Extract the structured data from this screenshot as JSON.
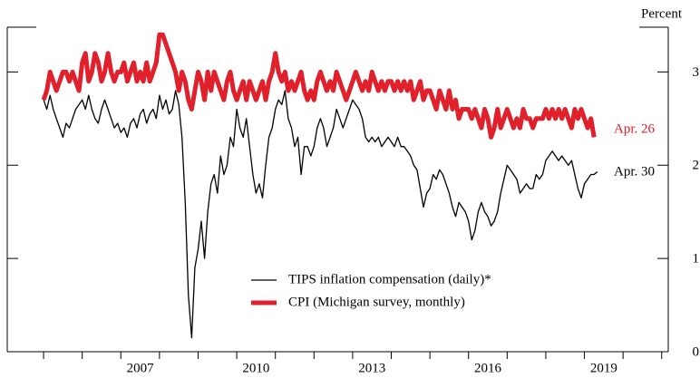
{
  "chart_data": {
    "type": "line",
    "y_label": "Percent",
    "xlim": [
      2004.06,
      2021.17
    ],
    "ylim": [
      0,
      3.48
    ],
    "yticks": [
      0,
      1,
      2,
      3
    ],
    "xticks": [
      2005,
      2006,
      2007,
      2008,
      2009,
      2010,
      2011,
      2012,
      2013,
      2014,
      2015,
      2016,
      2017,
      2018,
      2019,
      2020,
      2021
    ],
    "xtick_labels": [
      {
        "value": 2007.5,
        "label": "2007"
      },
      {
        "value": 2010.5,
        "label": "2010"
      },
      {
        "value": 2013.5,
        "label": "2013"
      },
      {
        "value": 2016.5,
        "label": "2016"
      },
      {
        "value": 2019.5,
        "label": "2019"
      }
    ],
    "x": [
      2005.0,
      2005.083,
      2005.167,
      2005.25,
      2005.333,
      2005.417,
      2005.5,
      2005.583,
      2005.667,
      2005.75,
      2005.833,
      2005.917,
      2006.0,
      2006.083,
      2006.167,
      2006.25,
      2006.333,
      2006.417,
      2006.5,
      2006.583,
      2006.667,
      2006.75,
      2006.833,
      2006.917,
      2007.0,
      2007.083,
      2007.167,
      2007.25,
      2007.333,
      2007.417,
      2007.5,
      2007.583,
      2007.667,
      2007.75,
      2007.833,
      2007.917,
      2008.0,
      2008.083,
      2008.167,
      2008.25,
      2008.333,
      2008.417,
      2008.5,
      2008.583,
      2008.667,
      2008.75,
      2008.833,
      2008.917,
      2009.0,
      2009.083,
      2009.167,
      2009.25,
      2009.333,
      2009.417,
      2009.5,
      2009.583,
      2009.667,
      2009.75,
      2009.833,
      2009.917,
      2010.0,
      2010.083,
      2010.167,
      2010.25,
      2010.333,
      2010.417,
      2010.5,
      2010.583,
      2010.667,
      2010.75,
      2010.833,
      2010.917,
      2011.0,
      2011.083,
      2011.167,
      2011.25,
      2011.333,
      2011.417,
      2011.5,
      2011.583,
      2011.667,
      2011.75,
      2011.833,
      2011.917,
      2012.0,
      2012.083,
      2012.167,
      2012.25,
      2012.333,
      2012.417,
      2012.5,
      2012.583,
      2012.667,
      2012.75,
      2012.833,
      2012.917,
      2013.0,
      2013.083,
      2013.167,
      2013.25,
      2013.333,
      2013.417,
      2013.5,
      2013.583,
      2013.667,
      2013.75,
      2013.833,
      2013.917,
      2014.0,
      2014.083,
      2014.167,
      2014.25,
      2014.333,
      2014.417,
      2014.5,
      2014.583,
      2014.667,
      2014.75,
      2014.833,
      2014.917,
      2015.0,
      2015.083,
      2015.167,
      2015.25,
      2015.333,
      2015.417,
      2015.5,
      2015.583,
      2015.667,
      2015.75,
      2015.833,
      2015.917,
      2016.0,
      2016.083,
      2016.167,
      2016.25,
      2016.333,
      2016.417,
      2016.5,
      2016.583,
      2016.667,
      2016.75,
      2016.833,
      2016.917,
      2017.0,
      2017.083,
      2017.167,
      2017.25,
      2017.333,
      2017.417,
      2017.5,
      2017.583,
      2017.667,
      2017.75,
      2017.833,
      2017.917,
      2018.0,
      2018.083,
      2018.167,
      2018.25,
      2018.333,
      2018.417,
      2018.5,
      2018.583,
      2018.667,
      2018.75,
      2018.833,
      2018.917,
      2019.0,
      2019.083,
      2019.167,
      2019.25,
      2019.333
    ],
    "series": [
      {
        "name": "TIPS inflation compensation (daily)*",
        "color": "#000000",
        "width": 1.3,
        "annotation": "Apr. 30",
        "values": [
          2.7,
          2.6,
          2.75,
          2.6,
          2.5,
          2.4,
          2.3,
          2.45,
          2.4,
          2.5,
          2.6,
          2.65,
          2.7,
          2.6,
          2.75,
          2.6,
          2.5,
          2.45,
          2.6,
          2.7,
          2.6,
          2.5,
          2.4,
          2.45,
          2.35,
          2.4,
          2.3,
          2.45,
          2.5,
          2.4,
          2.55,
          2.6,
          2.45,
          2.55,
          2.6,
          2.5,
          2.75,
          2.6,
          2.7,
          2.55,
          2.6,
          2.8,
          2.65,
          2.3,
          1.6,
          0.6,
          0.15,
          0.9,
          1.1,
          1.4,
          1.0,
          1.5,
          1.8,
          1.9,
          1.7,
          2.1,
          1.9,
          2.0,
          2.3,
          2.2,
          2.6,
          2.4,
          2.3,
          2.5,
          2.2,
          1.9,
          1.7,
          1.8,
          1.65,
          2.0,
          2.3,
          2.4,
          2.6,
          2.7,
          2.65,
          2.8,
          2.5,
          2.4,
          2.2,
          2.3,
          1.9,
          2.2,
          2.2,
          2.1,
          2.2,
          2.4,
          2.5,
          2.4,
          2.2,
          2.3,
          2.4,
          2.6,
          2.5,
          2.4,
          2.5,
          2.6,
          2.7,
          2.65,
          2.6,
          2.5,
          2.3,
          2.25,
          2.3,
          2.25,
          2.3,
          2.2,
          2.25,
          2.3,
          2.25,
          2.2,
          2.3,
          2.2,
          2.2,
          2.15,
          2.1,
          2.0,
          1.95,
          1.75,
          1.55,
          1.7,
          1.75,
          1.9,
          1.85,
          1.95,
          1.9,
          1.8,
          1.7,
          1.55,
          1.45,
          1.6,
          1.55,
          1.5,
          1.4,
          1.2,
          1.3,
          1.5,
          1.6,
          1.5,
          1.45,
          1.35,
          1.4,
          1.5,
          1.7,
          1.85,
          2.0,
          1.95,
          1.9,
          1.85,
          1.7,
          1.75,
          1.8,
          1.75,
          1.75,
          1.9,
          1.85,
          1.9,
          2.05,
          2.1,
          2.15,
          2.1,
          2.05,
          2.1,
          2.05,
          2.0,
          2.05,
          1.9,
          1.75,
          1.65,
          1.8,
          1.85,
          1.9,
          1.9,
          1.93
        ]
      },
      {
        "name": "CPI (Michigan survey, monthly)",
        "color": "#e0202a",
        "width": 5,
        "annotation": "Apr. 26",
        "values": [
          2.7,
          2.8,
          3.0,
          2.9,
          2.8,
          2.9,
          3.0,
          3.0,
          2.9,
          3.0,
          2.9,
          2.8,
          3.1,
          3.2,
          2.9,
          3.0,
          3.2,
          3.1,
          2.9,
          3.0,
          3.2,
          3.0,
          2.9,
          3.0,
          3.0,
          3.1,
          2.9,
          3.0,
          3.1,
          2.9,
          3.0,
          2.9,
          3.1,
          2.9,
          3.0,
          3.1,
          3.4,
          3.4,
          3.3,
          3.2,
          3.1,
          3.0,
          2.8,
          3.0,
          2.9,
          2.7,
          2.6,
          2.8,
          3.0,
          2.9,
          2.7,
          3.0,
          2.8,
          3.0,
          2.9,
          2.8,
          2.7,
          2.9,
          3.0,
          2.8,
          2.7,
          2.8,
          2.9,
          2.7,
          2.9,
          2.8,
          2.7,
          2.8,
          2.9,
          2.7,
          2.9,
          3.0,
          3.2,
          3.0,
          2.9,
          3.0,
          2.8,
          2.9,
          2.8,
          2.9,
          3.0,
          2.8,
          2.7,
          2.8,
          2.7,
          2.9,
          3.0,
          2.9,
          2.8,
          2.9,
          2.8,
          3.0,
          2.9,
          2.8,
          2.7,
          2.8,
          2.9,
          3.0,
          2.9,
          2.8,
          2.9,
          2.8,
          3.0,
          2.9,
          2.8,
          2.9,
          2.8,
          2.9,
          2.9,
          2.8,
          2.9,
          2.8,
          2.9,
          2.8,
          2.9,
          2.7,
          2.8,
          2.9,
          2.7,
          2.8,
          2.8,
          2.7,
          2.6,
          2.8,
          2.7,
          2.6,
          2.8,
          2.6,
          2.7,
          2.5,
          2.6,
          2.6,
          2.6,
          2.5,
          2.6,
          2.5,
          2.4,
          2.6,
          2.5,
          2.3,
          2.4,
          2.6,
          2.4,
          2.5,
          2.6,
          2.5,
          2.4,
          2.5,
          2.4,
          2.6,
          2.5,
          2.5,
          2.4,
          2.5,
          2.5,
          2.5,
          2.6,
          2.5,
          2.6,
          2.5,
          2.6,
          2.5,
          2.6,
          2.5,
          2.4,
          2.6,
          2.5,
          2.6,
          2.5,
          2.4,
          2.5,
          2.3,
          null
        ]
      }
    ]
  }
}
